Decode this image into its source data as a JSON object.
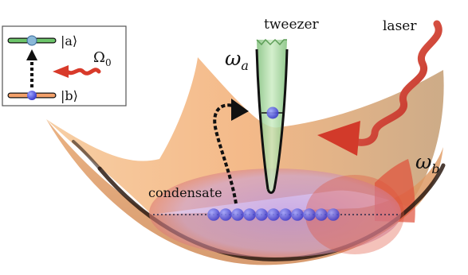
{
  "labels": {
    "tweezer": "tweezer",
    "laser": "laser",
    "condensate": "condensate",
    "omega_a": "ω",
    "omega_a_sub": "a",
    "omega_b": "ω",
    "omega_b_sub": "b"
  },
  "inset": {
    "state_a": "|a⟩",
    "state_b": "|b⟩",
    "rabi": "Ω",
    "rabi_sub": "0"
  },
  "condensate": {
    "atom_count": 11
  },
  "colors": {
    "surface_orange": "#f2b27a",
    "surface_shadow": "#c9955e",
    "condensate_fill": "#c79ad8",
    "condensate_red": "#e0503a",
    "atom": "#4a4ad8",
    "tweezer_fill": "#a8d8a0",
    "laser": "#d83a2a",
    "level_a": "#6cc46a",
    "level_b": "#f3a06a"
  }
}
